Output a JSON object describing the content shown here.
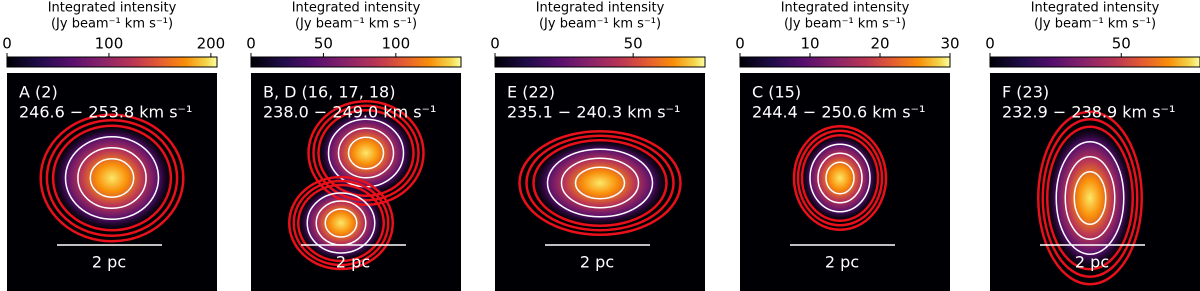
{
  "chart_data": [
    {
      "type": "image",
      "title": "Integrated intensity",
      "subtitle": "(Jy beam⁻¹ km s⁻¹)",
      "clim": [
        0,
        206
      ],
      "cticks": [
        0,
        100,
        200
      ],
      "label": "A (2)",
      "velocity": "246.6 − 253.8 km s⁻¹",
      "scalebar": "2 pc"
    },
    {
      "type": "image",
      "title": "Integrated intensity",
      "subtitle": "(Jy beam⁻¹ km s⁻¹)",
      "clim": [
        0,
        145
      ],
      "cticks": [
        0,
        50,
        100
      ],
      "label": "B, D (16, 17, 18)",
      "velocity": "238.0 − 249.0 km s⁻¹",
      "scalebar": "2 pc"
    },
    {
      "type": "image",
      "title": "Integrated intensity",
      "subtitle": "(Jy beam⁻¹ km s⁻¹)",
      "clim": [
        0,
        76
      ],
      "cticks": [
        0,
        50
      ],
      "label": "E (22)",
      "velocity": "235.1 − 240.3 km s⁻¹",
      "scalebar": "2 pc"
    },
    {
      "type": "image",
      "title": "Integrated intensity",
      "subtitle": "(Jy beam⁻¹ km s⁻¹)",
      "clim": [
        0,
        30
      ],
      "cticks": [
        0,
        10,
        20,
        30
      ],
      "label": "C (15)",
      "velocity": "244.4 − 250.6 km s⁻¹",
      "scalebar": "2 pc"
    },
    {
      "type": "image",
      "title": "Integrated intensity",
      "subtitle": "(Jy beam⁻¹ km s⁻¹)",
      "clim": [
        0,
        80
      ],
      "cticks": [
        0,
        50
      ],
      "label": "F (23)",
      "velocity": "232.9 − 238.9 km s⁻¹",
      "scalebar": "2 pc"
    }
  ]
}
